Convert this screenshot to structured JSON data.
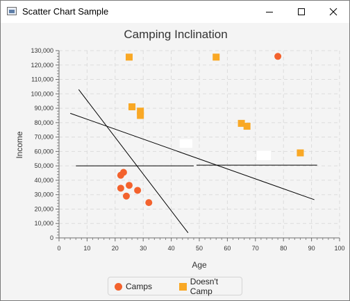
{
  "window": {
    "title": "Scatter Chart Sample",
    "icons": {
      "app": "app-icon",
      "minimize": "minimize-icon",
      "maximize": "maximize-icon",
      "close": "close-icon"
    }
  },
  "chart_data": {
    "type": "scatter",
    "title": "Camping Inclination",
    "xlabel": "Age",
    "ylabel": "Income",
    "xlim": [
      0,
      100
    ],
    "ylim": [
      0,
      130000
    ],
    "x_ticks": [
      0,
      10,
      20,
      30,
      40,
      50,
      60,
      70,
      80,
      90,
      100
    ],
    "y_ticks": [
      0,
      10000,
      20000,
      30000,
      40000,
      50000,
      60000,
      70000,
      80000,
      90000,
      100000,
      110000,
      120000,
      130000
    ],
    "y_tick_labels": [
      "0",
      "10,000",
      "20,000",
      "30,000",
      "40,000",
      "50,000",
      "60,000",
      "70,000",
      "80,000",
      "90,000",
      "100,000",
      "110,000",
      "120,000",
      "130,000"
    ],
    "grid": true,
    "legend_position": "bottom",
    "series": [
      {
        "name": "Camps",
        "marker": "circle",
        "color": "#f3622d",
        "points": [
          [
            22,
            43500
          ],
          [
            23,
            45500
          ],
          [
            22,
            34500
          ],
          [
            24,
            29000
          ],
          [
            25,
            36500
          ],
          [
            28,
            33000
          ],
          [
            32,
            24500
          ],
          [
            78,
            126000
          ]
        ]
      },
      {
        "name": "Doesn't Camp",
        "marker": "square",
        "color": "#f9a825",
        "points": [
          [
            25,
            125500
          ],
          [
            56,
            125500
          ],
          [
            26,
            91000
          ],
          [
            29,
            88000
          ],
          [
            29,
            85000
          ],
          [
            65,
            79500
          ],
          [
            67,
            77500
          ],
          [
            86,
            59000
          ]
        ]
      }
    ],
    "lines": [
      {
        "from": [
          7,
          103000
        ],
        "to": [
          46,
          3500
        ]
      },
      {
        "from": [
          4,
          86500
        ],
        "to": [
          91,
          26500
        ]
      },
      {
        "from": [
          6,
          50000
        ],
        "to": [
          48,
          50000
        ]
      },
      {
        "from": [
          49,
          50500
        ],
        "to": [
          92,
          50500
        ]
      }
    ],
    "blanks": [
      {
        "x": [
          43,
          47.5
        ],
        "y": [
          62500,
          68500
        ]
      },
      {
        "x": [
          70.5,
          75.5
        ],
        "y": [
          54000,
          60500
        ]
      }
    ]
  }
}
